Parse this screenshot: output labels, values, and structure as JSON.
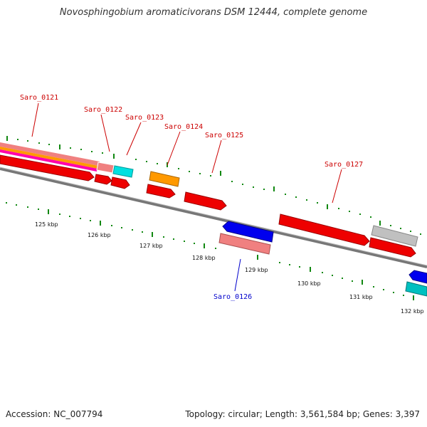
{
  "title": "Novosphingobium aromaticivorans DSM 12444, complete genome",
  "accession": "Accession: NC_007794",
  "topology": "Topology: circular; Length: 3,561,584 bp; Genes: 3,397",
  "kbp_labels": [
    "125 kbp",
    "126 kbp",
    "127 kbp",
    "128 kbp",
    "129 kbp",
    "130 kbp",
    "131 kbp",
    "132 kbp"
  ],
  "gene_labels": [
    "Saro_0121",
    "Saro_0122",
    "Saro_0123",
    "Saro_0124",
    "Saro_0125",
    "Saro_0126",
    "Saro_0127"
  ],
  "colors": {
    "forward_label": "#cc0000",
    "reverse_label": "#0000cc",
    "tick": "#118811",
    "backbone": "#777777",
    "red": "#ee0000",
    "salmon": "#f08080",
    "cyan": "#00e0e0",
    "orange": "#ff9900",
    "blue": "#0000ee",
    "gray": "#c0c0c0",
    "teal": "#00c0c0",
    "magenta": "#ff00aa"
  }
}
